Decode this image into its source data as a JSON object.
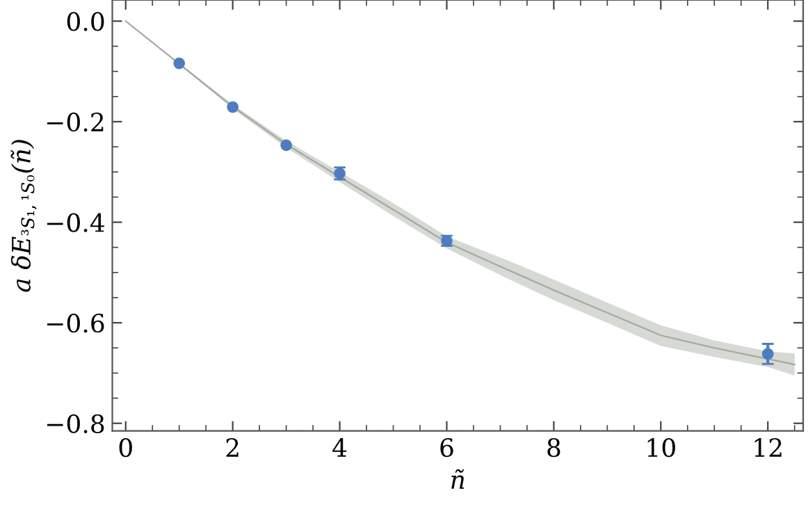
{
  "chart_data": {
    "type": "scatter",
    "xlabel": "ñ",
    "ylabel": "a δE$_{³S₁,¹S₀}$(ñ)",
    "xlim": [
      -0.25,
      12.66
    ],
    "ylim": [
      -0.815,
      0.042
    ],
    "xticks": [
      0,
      2,
      4,
      6,
      8,
      10,
      12
    ],
    "yticks": [
      {
        "value": 0.0,
        "label": "0.0"
      },
      {
        "value": -0.2,
        "label": "−0.2"
      },
      {
        "value": -0.4,
        "label": "−0.4"
      },
      {
        "value": -0.6,
        "label": "−0.6"
      },
      {
        "value": -0.8,
        "label": "−0.8"
      }
    ],
    "grid": false,
    "marker": "circle",
    "series": [
      {
        "type": "line",
        "color": "#a3aba0",
        "x": [
          0,
          1,
          2,
          3,
          4,
          5,
          6,
          7,
          8,
          9,
          10,
          11,
          12,
          12.5
        ],
        "values": [
          0,
          -0.085,
          -0.17,
          -0.245,
          -0.31,
          -0.375,
          -0.44,
          -0.488,
          -0.535,
          -0.58,
          -0.625,
          -0.65,
          -0.672,
          -0.683
        ],
        "lower": [
          0,
          -0.087,
          -0.174,
          -0.252,
          -0.32,
          -0.388,
          -0.452,
          -0.505,
          -0.555,
          -0.6,
          -0.646,
          -0.668,
          -0.688,
          -0.705
        ],
        "upper": [
          0,
          -0.083,
          -0.166,
          -0.238,
          -0.3,
          -0.362,
          -0.428,
          -0.47,
          -0.514,
          -0.56,
          -0.605,
          -0.635,
          -0.657,
          -0.661
        ],
        "marker": "none"
      },
      {
        "color": "#4f7cbf",
        "x": [
          1,
          2,
          3,
          4,
          6,
          12
        ],
        "values": [
          -0.084,
          -0.171,
          -0.247,
          -0.303,
          -0.437,
          -0.662
        ],
        "errors": [
          null,
          null,
          null,
          0.012,
          0.01,
          0.02
        ]
      }
    ]
  }
}
